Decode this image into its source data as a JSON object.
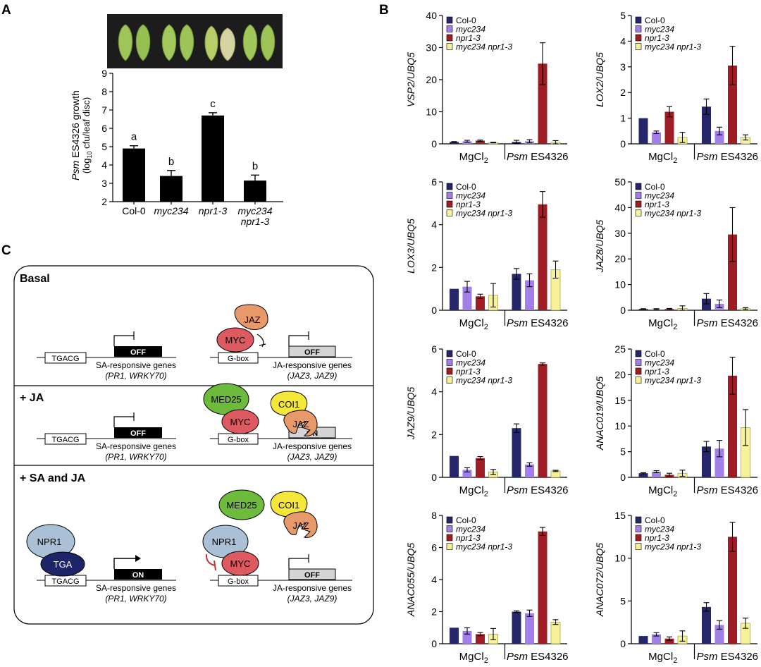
{
  "panels": {
    "a": "A",
    "b": "B",
    "c": "C"
  },
  "colors": {
    "col0": "#26266b",
    "myc234": "#a27fe8",
    "npr1": "#9e1c24",
    "double": "#f7f29a",
    "black": "#000000",
    "jaz": "#e8996a",
    "myc": "#dd5a60",
    "med25": "#6dbb3c",
    "coi1": "#f5e63a",
    "npr1_protein": "#a9c0d6",
    "tga": "#1d2468",
    "leaf_photo_bg": "#1c1c1c"
  },
  "panel_a": {
    "ylabel_line1_italic": "Psm",
    "ylabel_line1_rest": " ES4326 growth",
    "ylabel_line2": "(log10 cfu/leaf disc)",
    "ylabel_line2_pre": "(log",
    "ylabel_line2_sub": "10",
    "ylabel_line2_post": " cfu/leaf disc)"
  },
  "legend": {
    "col0": "Col-0",
    "myc234": "myc234",
    "npr1": "npr1-3",
    "double": "myc234 npr1-3"
  },
  "groups": {
    "mgcl2_pre": "MgCl",
    "mgcl2_sub": "2",
    "psm_italic": "Psm",
    "psm_rest": " ES4326"
  },
  "chart_data": [
    {
      "type": "bar",
      "panel": "A",
      "categories": [
        "Col-0",
        "myc234",
        "npr1-3",
        "myc234 npr1-3"
      ],
      "values": [
        4.9,
        3.4,
        6.7,
        3.15
      ],
      "errors": [
        0.15,
        0.3,
        0.15,
        0.3
      ],
      "letters": [
        "a",
        "b",
        "c",
        "b"
      ],
      "ylabel": "Psm ES4326 growth (log10 cfu/leaf disc)",
      "ylim": [
        2,
        9
      ],
      "yticks": [
        2,
        3,
        4,
        5,
        6,
        7,
        8,
        9
      ]
    },
    {
      "type": "bar",
      "panel": "B",
      "ylabel": "VSP2/UBQ5",
      "ylim": [
        0,
        40
      ],
      "yticks": [
        0,
        10,
        20,
        30,
        40
      ],
      "groups": [
        "MgCl2",
        "Psm ES4326"
      ],
      "series": [
        {
          "name": "Col-0",
          "values": [
            0.6,
            0.6
          ],
          "errors": [
            0.1,
            0.5
          ]
        },
        {
          "name": "myc234",
          "values": [
            0.8,
            0.8
          ],
          "errors": [
            0.3,
            0.5
          ]
        },
        {
          "name": "npr1-3",
          "values": [
            1.0,
            25.0
          ],
          "errors": [
            0.2,
            6.5
          ]
        },
        {
          "name": "myc234 npr1-3",
          "values": [
            0.4,
            0.5
          ],
          "errors": [
            0.1,
            0.5
          ]
        }
      ]
    },
    {
      "type": "bar",
      "panel": "B",
      "ylabel": "LOX2/UBQ5",
      "ylim": [
        0,
        5
      ],
      "yticks": [
        0,
        1,
        2,
        3,
        4,
        5
      ],
      "groups": [
        "MgCl2",
        "Psm ES4326"
      ],
      "series": [
        {
          "name": "Col-0",
          "values": [
            1.0,
            1.45
          ],
          "errors": [
            0.0,
            0.3
          ]
        },
        {
          "name": "myc234",
          "values": [
            0.45,
            0.5
          ],
          "errors": [
            0.05,
            0.15
          ]
        },
        {
          "name": "npr1-3",
          "values": [
            1.25,
            3.05
          ],
          "errors": [
            0.2,
            0.75
          ]
        },
        {
          "name": "myc234 npr1-3",
          "values": [
            0.25,
            0.25
          ],
          "errors": [
            0.2,
            0.1
          ]
        }
      ]
    },
    {
      "type": "bar",
      "panel": "B",
      "ylabel": "LOX3/UBQ5",
      "ylim": [
        0,
        6
      ],
      "yticks": [
        0,
        2,
        4,
        6
      ],
      "groups": [
        "MgCl2",
        "Psm ES4326"
      ],
      "series": [
        {
          "name": "Col-0",
          "values": [
            1.0,
            1.7
          ],
          "errors": [
            0.0,
            0.25
          ]
        },
        {
          "name": "myc234",
          "values": [
            1.1,
            1.4
          ],
          "errors": [
            0.25,
            0.3
          ]
        },
        {
          "name": "npr1-3",
          "values": [
            0.65,
            4.95
          ],
          "errors": [
            0.1,
            0.6
          ]
        },
        {
          "name": "myc234 npr1-3",
          "values": [
            0.7,
            1.9
          ],
          "errors": [
            0.55,
            0.4
          ]
        }
      ]
    },
    {
      "type": "bar",
      "panel": "B",
      "ylabel": "JAZ8/UBQ5",
      "ylim": [
        0,
        50
      ],
      "yticks": [
        0,
        10,
        20,
        30,
        40,
        50
      ],
      "groups": [
        "MgCl2",
        "Psm ES4326"
      ],
      "series": [
        {
          "name": "Col-0",
          "values": [
            0.5,
            4.5
          ],
          "errors": [
            0.1,
            2.0
          ]
        },
        {
          "name": "myc234",
          "values": [
            0.4,
            2.5
          ],
          "errors": [
            0.2,
            1.5
          ]
        },
        {
          "name": "npr1-3",
          "values": [
            0.5,
            29.5
          ],
          "errors": [
            0.2,
            10.5
          ]
        },
        {
          "name": "myc234 npr1-3",
          "values": [
            0.7,
            0.6
          ],
          "errors": [
            1.0,
            0.4
          ]
        }
      ]
    },
    {
      "type": "bar",
      "panel": "B",
      "ylabel": "JAZ9/UBQ5",
      "ylim": [
        0,
        6
      ],
      "yticks": [
        0,
        2,
        4,
        6
      ],
      "groups": [
        "MgCl2",
        "Psm ES4326"
      ],
      "series": [
        {
          "name": "Col-0",
          "values": [
            1.0,
            2.3
          ],
          "errors": [
            0.0,
            0.2
          ]
        },
        {
          "name": "myc234",
          "values": [
            0.35,
            0.6
          ],
          "errors": [
            0.1,
            0.08
          ]
        },
        {
          "name": "npr1-3",
          "values": [
            0.9,
            5.3
          ],
          "errors": [
            0.07,
            0.05
          ]
        },
        {
          "name": "myc234 npr1-3",
          "values": [
            0.25,
            0.3
          ],
          "errors": [
            0.12,
            0.03
          ]
        }
      ]
    },
    {
      "type": "bar",
      "panel": "B",
      "ylabel": "ANAC019/UBQ5",
      "ylim": [
        0,
        25
      ],
      "yticks": [
        0,
        5,
        10,
        15,
        20,
        25
      ],
      "groups": [
        "MgCl2",
        "Psm ES4326"
      ],
      "series": [
        {
          "name": "Col-0",
          "values": [
            0.8,
            6.0
          ],
          "errors": [
            0.1,
            1.0
          ]
        },
        {
          "name": "myc234",
          "values": [
            1.1,
            5.6
          ],
          "errors": [
            0.2,
            1.6
          ]
        },
        {
          "name": "npr1-3",
          "values": [
            0.5,
            19.8
          ],
          "errors": [
            0.3,
            3.6
          ]
        },
        {
          "name": "myc234 npr1-3",
          "values": [
            0.8,
            9.7
          ],
          "errors": [
            0.6,
            3.5
          ]
        }
      ]
    },
    {
      "type": "bar",
      "panel": "B",
      "ylabel": "ANAC055/UBQ5",
      "ylim": [
        0,
        8
      ],
      "yticks": [
        0,
        2,
        4,
        6,
        8
      ],
      "groups": [
        "MgCl2",
        "Psm ES4326"
      ],
      "series": [
        {
          "name": "Col-0",
          "values": [
            1.0,
            2.0
          ],
          "errors": [
            0.0,
            0.05
          ]
        },
        {
          "name": "myc234",
          "values": [
            0.8,
            1.9
          ],
          "errors": [
            0.2,
            0.2
          ]
        },
        {
          "name": "npr1-3",
          "values": [
            0.6,
            7.0
          ],
          "errors": [
            0.1,
            0.25
          ]
        },
        {
          "name": "myc234 npr1-3",
          "values": [
            0.6,
            1.35
          ],
          "errors": [
            0.35,
            0.15
          ]
        }
      ]
    },
    {
      "type": "bar",
      "panel": "B",
      "ylabel": "ANAC072/UBQ5",
      "ylim": [
        0,
        15
      ],
      "yticks": [
        0,
        5,
        10,
        15
      ],
      "groups": [
        "MgCl2",
        "Psm ES4326"
      ],
      "series": [
        {
          "name": "Col-0",
          "values": [
            0.9,
            4.3
          ],
          "errors": [
            0.0,
            0.5
          ]
        },
        {
          "name": "myc234",
          "values": [
            1.1,
            2.2
          ],
          "errors": [
            0.2,
            0.5
          ]
        },
        {
          "name": "npr1-3",
          "values": [
            0.6,
            12.5
          ],
          "errors": [
            0.2,
            1.7
          ]
        },
        {
          "name": "myc234 npr1-3",
          "values": [
            0.9,
            2.4
          ],
          "errors": [
            0.6,
            0.6
          ]
        }
      ]
    }
  ],
  "panel_c": {
    "sections": [
      {
        "title": "Basal",
        "sa_state": "OFF",
        "ja_state": "OFF"
      },
      {
        "title": "+ JA",
        "sa_state": "OFF",
        "ja_state": "ON"
      },
      {
        "title": "+ SA and JA",
        "sa_state": "ON",
        "ja_state": "OFF"
      }
    ],
    "tgacg": "TGACG",
    "gbox": "G-box",
    "sa_genes": "SA-responsive genes",
    "sa_genes_list": "(PR1, WRKY70)",
    "ja_genes": "JA-responsive genes",
    "ja_genes_list": "(JAZ3, JAZ9)",
    "proteins": {
      "jaz": "JAZ",
      "myc": "MYC",
      "med25": "MED25",
      "coi1": "COI1",
      "npr1": "NPR1",
      "tga": "TGA"
    }
  }
}
